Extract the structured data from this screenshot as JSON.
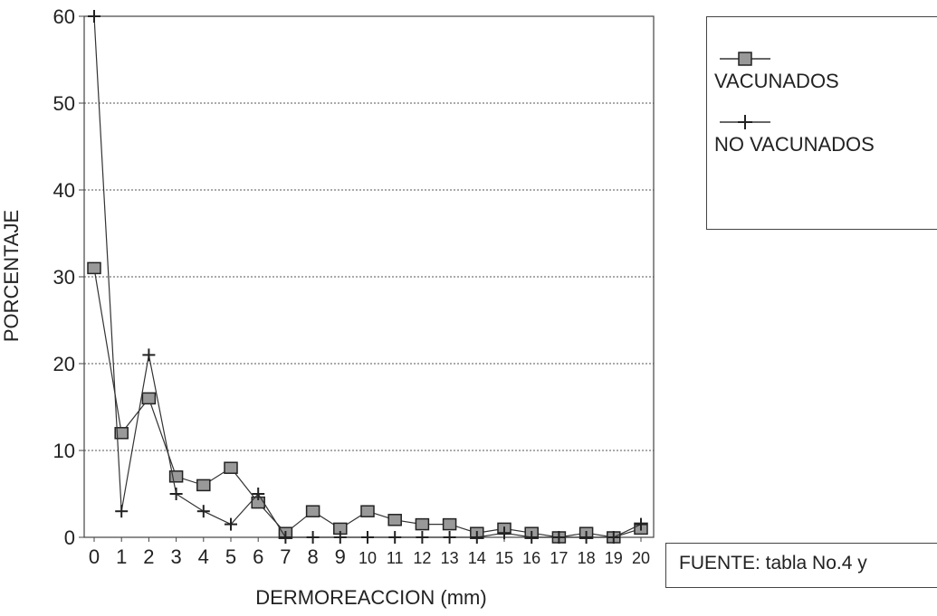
{
  "chart_data": {
    "type": "line",
    "title": "",
    "xlabel": "DERMOREACCION (mm)",
    "ylabel": "PORCENTAJE",
    "ylim": [
      0,
      60
    ],
    "yticks": [
      0,
      10,
      20,
      30,
      40,
      50,
      60
    ],
    "grid": true,
    "legend_position": "top-right",
    "categories": [
      "0",
      "1",
      "2",
      "3",
      "4",
      "5",
      "6",
      "7",
      "8",
      "9",
      "10",
      "11",
      "12",
      "13",
      "14",
      "15",
      "16",
      "17",
      "18",
      "19",
      "20"
    ],
    "series": [
      {
        "name": "VACUNADOS",
        "marker": "square",
        "values": [
          31,
          12,
          16,
          7,
          6,
          8,
          4,
          0.5,
          3,
          1,
          3,
          2,
          1.5,
          1.5,
          0.5,
          1,
          0.5,
          0,
          0.5,
          0,
          1
        ]
      },
      {
        "name": "NO VACUNADOS",
        "marker": "plus",
        "values": [
          60,
          3,
          21,
          5,
          3,
          1.5,
          5,
          0,
          0,
          0,
          0,
          0,
          0,
          0,
          0,
          0.5,
          0,
          0,
          0,
          0,
          1.5
        ]
      }
    ],
    "source_note": "FUENTE: tabla No.4 y"
  },
  "colors": {
    "line": "#333333",
    "grid": "#555555",
    "marker_fill": "#999999"
  }
}
